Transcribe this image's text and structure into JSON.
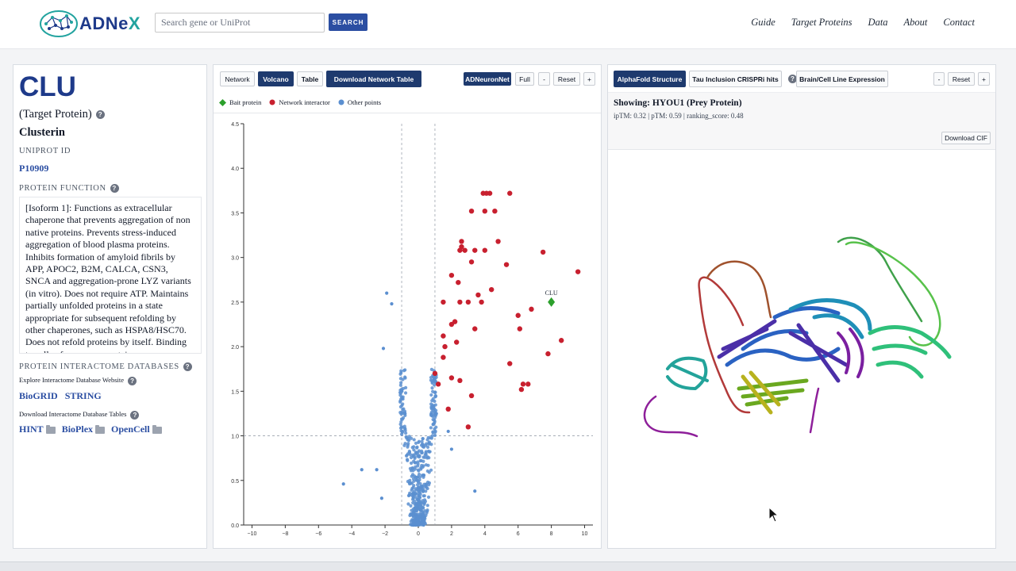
{
  "header": {
    "logo_text_a": "ADNe",
    "logo_text_b": "X",
    "search_placeholder": "Search gene or UniProt",
    "search_button": "SEARCH",
    "nav": [
      "Guide",
      "Target Proteins",
      "Data",
      "About",
      "Contact"
    ]
  },
  "left": {
    "gene": "CLU",
    "target_label": "(Target Protein)",
    "protein_name": "Clusterin",
    "uniprot_label": "UNIPROT ID",
    "uniprot_id": "P10909",
    "function_label": "PROTEIN FUNCTION",
    "function_text": "[Isoform 1]: Functions as extracellular chaperone that prevents aggregation of non native proteins. Prevents stress-induced aggregation of blood plasma proteins. Inhibits formation of amyloid fibrils by APP, APOC2, B2M, CALCA, CSN3, SNCA and aggregation-prone LYZ variants (in vitro). Does not require ATP. Maintains partially unfolded proteins in a state appropriate for subsequent refolding by other chaperones, such as HSPA8/HSC70. Does not refold proteins by itself. Binding to cells of numerous proteins",
    "interactome_label": "PROTEIN INTERACTOME DATABASES",
    "explore_label": "Explore Interactome Database Website",
    "explore_links": [
      "BioGRID",
      "STRING"
    ],
    "download_label": "Download Interactome Database Tables",
    "download_links": [
      "HINT",
      "BioPlex",
      "OpenCell"
    ]
  },
  "middle": {
    "tabs": [
      "Network",
      "Volcano",
      "Table"
    ],
    "active_tab": "Volcano",
    "download_button": "Download Network Table",
    "adneuronet": "ADNeuronNet",
    "full": "Full",
    "minus": "-",
    "reset": "Reset",
    "plus": "+",
    "legend": [
      {
        "label": "Bait protein",
        "color": "#2ca02c",
        "shape": "diamond"
      },
      {
        "label": "Network interactor",
        "color": "#c8202f",
        "shape": "circle"
      },
      {
        "label": "Other points",
        "color": "#5b8fd0",
        "shape": "circle"
      }
    ]
  },
  "chart_data": {
    "type": "scatter",
    "xlim": [
      -10.5,
      10.5
    ],
    "ylim": [
      0,
      4.5
    ],
    "x_ticks": [
      -10,
      -8,
      -6,
      -4,
      -2,
      0,
      2,
      4,
      6,
      8,
      10
    ],
    "y_ticks": [
      0.0,
      0.5,
      1.0,
      1.5,
      2.0,
      2.5,
      3.0,
      3.5,
      4.0,
      4.5
    ],
    "thresholds": {
      "x": [
        -1,
        1
      ],
      "y": 1.0
    },
    "bait": {
      "label": "CLU",
      "x": 8.0,
      "y": 2.5
    },
    "interactors": [
      [
        3.9,
        3.72
      ],
      [
        4.1,
        3.72
      ],
      [
        4.3,
        3.72
      ],
      [
        5.5,
        3.72
      ],
      [
        3.2,
        3.52
      ],
      [
        4.0,
        3.52
      ],
      [
        4.6,
        3.52
      ],
      [
        2.6,
        3.18
      ],
      [
        2.6,
        3.12
      ],
      [
        2.5,
        3.08
      ],
      [
        2.8,
        3.08
      ],
      [
        3.4,
        3.08
      ],
      [
        4.0,
        3.08
      ],
      [
        4.8,
        3.18
      ],
      [
        7.5,
        3.06
      ],
      [
        3.2,
        2.95
      ],
      [
        5.3,
        2.92
      ],
      [
        9.6,
        2.84
      ],
      [
        2.0,
        2.8
      ],
      [
        2.4,
        2.72
      ],
      [
        4.4,
        2.64
      ],
      [
        3.6,
        2.58
      ],
      [
        1.5,
        2.5
      ],
      [
        2.5,
        2.5
      ],
      [
        3.0,
        2.5
      ],
      [
        3.8,
        2.5
      ],
      [
        6.8,
        2.42
      ],
      [
        6.0,
        2.35
      ],
      [
        2.0,
        2.25
      ],
      [
        2.2,
        2.28
      ],
      [
        1.5,
        2.12
      ],
      [
        3.4,
        2.2
      ],
      [
        6.1,
        2.2
      ],
      [
        1.6,
        2.0
      ],
      [
        2.3,
        2.05
      ],
      [
        8.6,
        2.07
      ],
      [
        1.5,
        1.88
      ],
      [
        1.0,
        1.7
      ],
      [
        2.0,
        1.65
      ],
      [
        7.8,
        1.92
      ],
      [
        5.5,
        1.81
      ],
      [
        2.5,
        1.62
      ],
      [
        1.2,
        1.58
      ],
      [
        6.3,
        1.58
      ],
      [
        6.6,
        1.58
      ],
      [
        6.2,
        1.52
      ],
      [
        3.2,
        1.45
      ],
      [
        1.8,
        1.3
      ],
      [
        3.0,
        1.1
      ]
    ],
    "others_note": "dense cluster near x=0 under threshold"
  },
  "right": {
    "tabs": [
      "AlphaFold Structure",
      "Tau Inclusion CRISPRi hits",
      "Brain/Cell Line Expression"
    ],
    "active_tab": "AlphaFold Structure",
    "minus": "-",
    "reset": "Reset",
    "plus": "+",
    "showing": "Showing: HYOU1 (Prey Protein)",
    "metrics": "ipTM: 0.32 | pTM: 0.59 | ranking_score: 0.48",
    "download_cif": "Download CIF"
  }
}
